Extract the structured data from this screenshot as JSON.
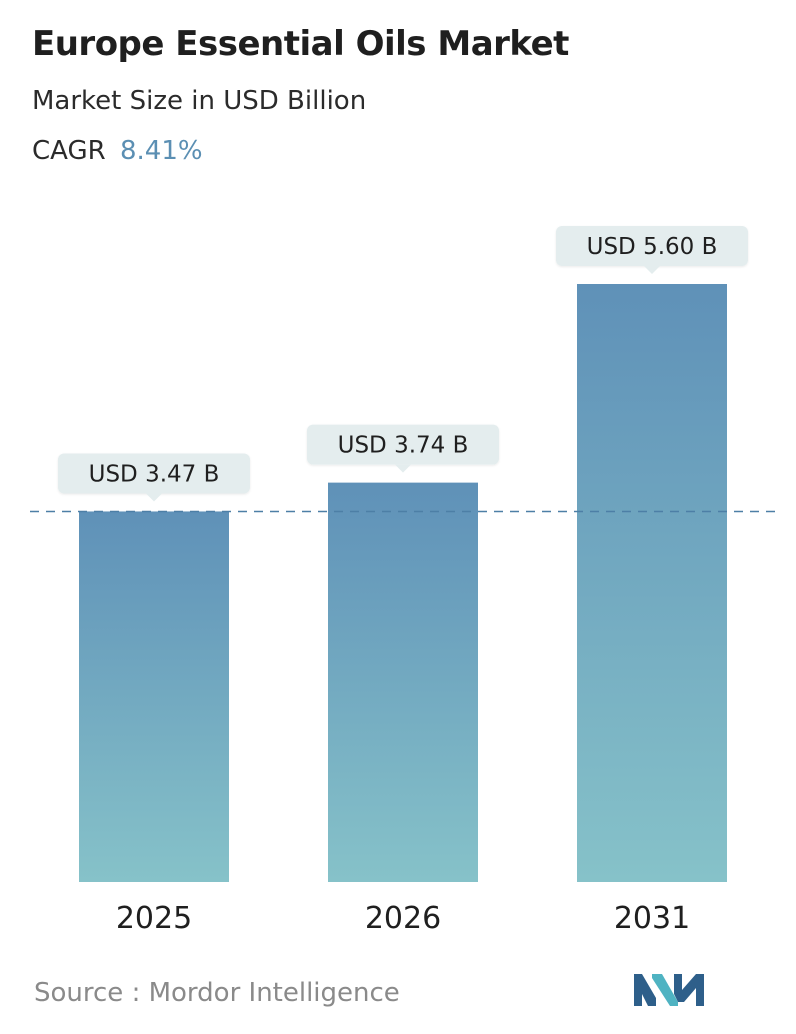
{
  "header": {
    "title": "Europe Essential Oils Market",
    "subtitle": "Market Size in USD Billion",
    "cagr_label": "CAGR",
    "cagr_value": "8.41%"
  },
  "chart_data": {
    "type": "bar",
    "categories": [
      "2025",
      "2026",
      "2031"
    ],
    "values": [
      3.47,
      3.74,
      5.6
    ],
    "value_labels": [
      "USD 3.47 B",
      "USD 3.74 B",
      "USD 5.60 B"
    ],
    "ylabel": "Market Size in USD Billion",
    "ylim": [
      0,
      5.6
    ],
    "reference_line": 3.47,
    "grid": false,
    "legend": "none",
    "colors": {
      "bar_top": "#5f91b8",
      "bar_bottom": "#86c2c9",
      "label_bg": "#e4edee",
      "reference_line": "#4d7fa6"
    }
  },
  "footer": {
    "source": "Source :  Mordor Intelligence",
    "logo_icon": "mordor-intelligence-logo-icon",
    "logo_colors": [
      "#2e5f8a",
      "#4fb3c2"
    ]
  }
}
